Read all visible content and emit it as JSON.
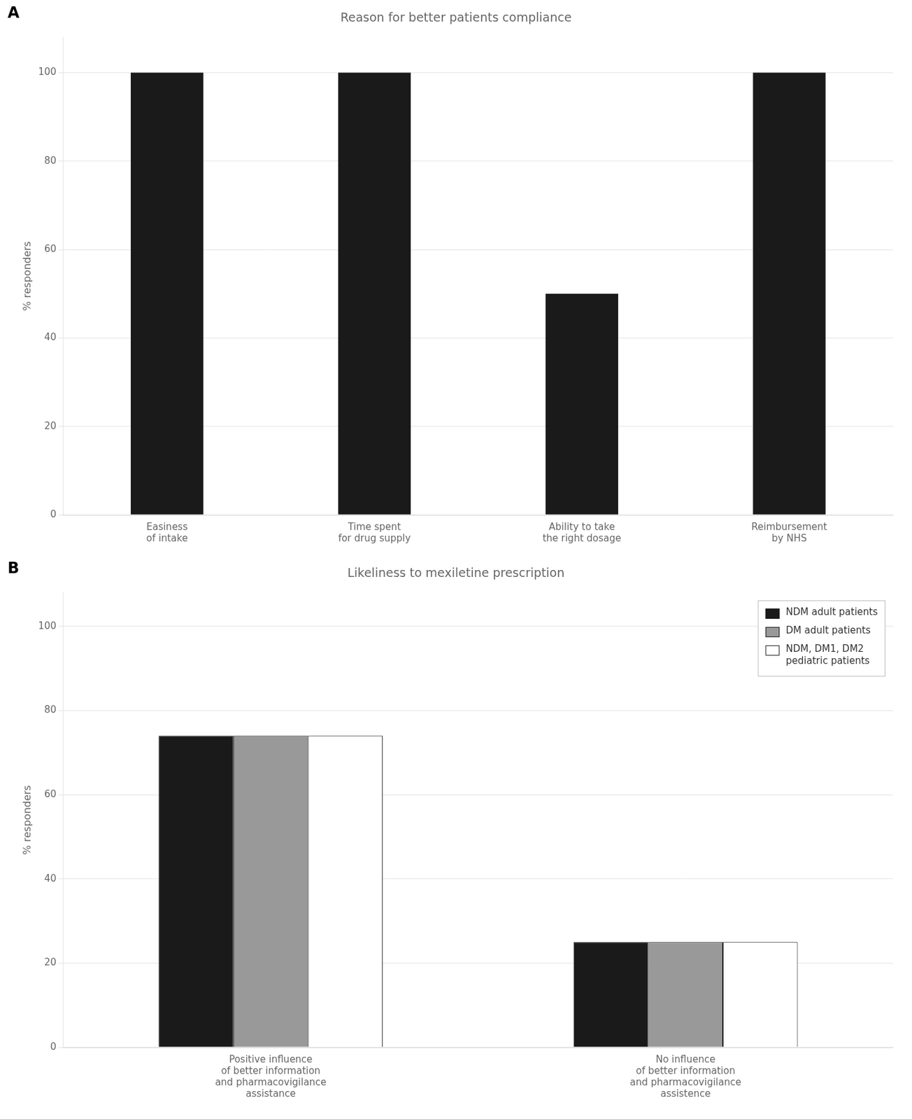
{
  "chart_data": [
    {
      "type": "bar",
      "title": "Reason for better patients compliance",
      "annotations": [
        "A"
      ],
      "categories": [
        "Easiness\nof intake",
        "Time spent\nfor drug supply",
        "Ability to take\nthe right dosage",
        "Reimbursement\nby NHS"
      ],
      "values": [
        100,
        100,
        50,
        100
      ],
      "color": "#1a1a1a",
      "ylabel": "% responders",
      "ylim": [
        0,
        108
      ],
      "yticks": [
        0,
        20,
        40,
        60,
        80,
        100
      ],
      "grid": true
    },
    {
      "type": "bar",
      "title": "Likeliness to mexiletine prescription",
      "annotations": [
        "B"
      ],
      "categories": [
        "Positive influence\nof better information\nand pharmacovigilance\nassistance",
        "No influence\nof better information\nand pharmacovigilance\nassistence"
      ],
      "series": [
        {
          "name": "NDM adult patients",
          "color": "#1a1a1a",
          "values": [
            74,
            25
          ]
        },
        {
          "name": "DM adult patients",
          "color": "#999999",
          "values": [
            74,
            25
          ]
        },
        {
          "name": "NDM, DM1, DM2\npediatric patients",
          "color": "#ffffff",
          "values": [
            74,
            25
          ]
        }
      ],
      "ylabel": "% responders",
      "ylim": [
        0,
        108
      ],
      "yticks": [
        0,
        20,
        40,
        60,
        80,
        100
      ],
      "grid": true,
      "legend": "upper right"
    }
  ]
}
